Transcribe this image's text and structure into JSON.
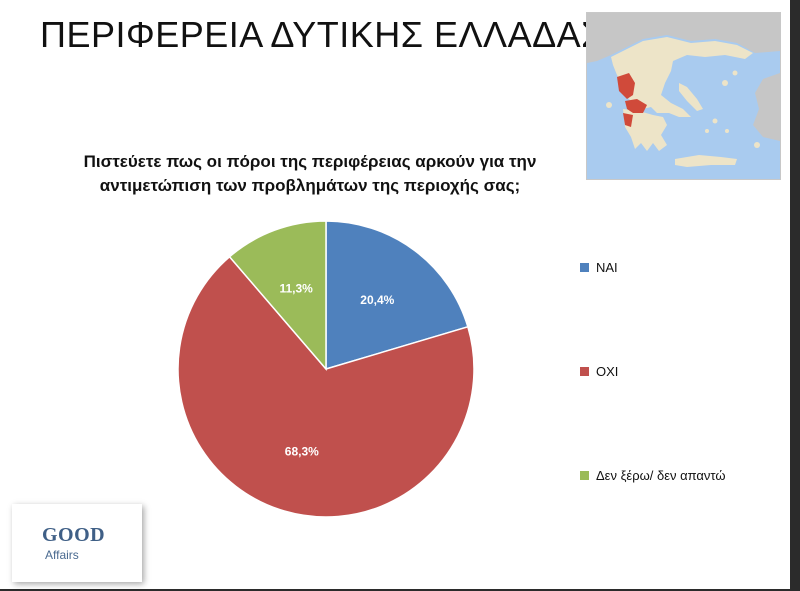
{
  "slide": {
    "title": "ΠΕΡΙΦΕΡΕΙΑ ΔΥΤΙΚΗΣ ΕΛΛΑΔΑΣ",
    "question_line1": "Πιστεύετε πως οι πόροι της περιφέρειας αρκούν για την",
    "question_line2": "αντιμετώπιση των προβλημάτων της περιοχής σας;"
  },
  "map": {
    "sea_color": "#a9cbef",
    "land_color": "#ede4c8",
    "neighbor_color": "#c6c6c6",
    "highlight_color": "#d04a3a"
  },
  "logo": {
    "word1": "GOOD",
    "word2": "Affairs"
  },
  "chart_data": {
    "type": "pie",
    "categories": [
      "ΝΑΙ",
      "ΟΧΙ",
      "Δεν ξέρω/ δεν απαντώ"
    ],
    "values": [
      20.4,
      68.3,
      11.3
    ],
    "data_labels": [
      "20,4%",
      "68,3%",
      "11,3%"
    ],
    "colors": [
      "#4f81bd",
      "#c0504d",
      "#9bbb59"
    ],
    "title": "Πιστεύετε πως οι πόροι της περιφέρειας αρκούν για την αντιμετώπιση των προβλημάτων της περιοχής σας;",
    "legend": "right",
    "start_angle": "top",
    "direction": "clockwise"
  }
}
